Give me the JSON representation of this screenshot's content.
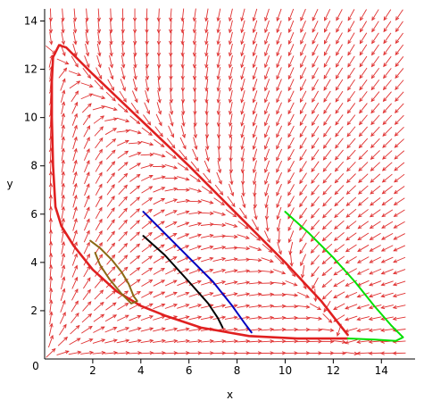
{
  "chart_data": {
    "type": "line",
    "title": "",
    "xlabel": "x",
    "ylabel": "y",
    "xlim": [
      0,
      15.4
    ],
    "ylim": [
      0,
      14.5
    ],
    "x_ticks": [
      0,
      2,
      4,
      6,
      8,
      10,
      12,
      14
    ],
    "y_ticks": [
      2,
      4,
      6,
      8,
      10,
      12,
      14
    ],
    "grid": false,
    "direction_field": {
      "color": "#e03030",
      "x_range": [
        0,
        15
      ],
      "y_range": [
        0,
        14.5
      ],
      "rows": 30,
      "cols": 30
    },
    "series": [
      {
        "color": "#e02020",
        "points": [
          [
            12.6,
            0.85
          ],
          [
            10.5,
            0.85
          ],
          [
            8.5,
            0.95
          ],
          [
            6.5,
            1.3
          ],
          [
            5,
            1.8
          ],
          [
            4,
            2.2
          ],
          [
            3,
            2.8
          ],
          [
            2,
            3.7
          ],
          [
            1.2,
            4.7
          ],
          [
            0.7,
            5.5
          ],
          [
            0.45,
            6.3
          ],
          [
            0.35,
            8
          ],
          [
            0.3,
            10
          ],
          [
            0.3,
            11.5
          ],
          [
            0.35,
            12.5
          ],
          [
            0.6,
            13
          ],
          [
            0.9,
            12.9
          ],
          [
            2,
            11.8
          ],
          [
            4,
            9.9
          ],
          [
            6,
            8
          ],
          [
            8,
            6
          ],
          [
            10,
            4
          ],
          [
            11.5,
            2.4
          ],
          [
            12.2,
            1.5
          ],
          [
            12.6,
            1.0
          ]
        ]
      },
      {
        "color": "#00e000",
        "points": [
          [
            10,
            6.1
          ],
          [
            11,
            5.2
          ],
          [
            12,
            4.2
          ],
          [
            12.9,
            3.2
          ],
          [
            13.7,
            2.2
          ],
          [
            14.4,
            1.4
          ],
          [
            14.9,
            0.9
          ],
          [
            14.6,
            0.75
          ],
          [
            13.8,
            0.8
          ],
          [
            12.6,
            0.85
          ]
        ]
      },
      {
        "color": "#0000c0",
        "points": [
          [
            4.1,
            6.1
          ],
          [
            5,
            5.2
          ],
          [
            6,
            4.2
          ],
          [
            7,
            3.2
          ],
          [
            7.8,
            2.2
          ],
          [
            8.3,
            1.5
          ],
          [
            8.6,
            1.1
          ]
        ]
      },
      {
        "color": "#000000",
        "points": [
          [
            4.1,
            5.1
          ],
          [
            5,
            4.3
          ],
          [
            6,
            3.2
          ],
          [
            6.8,
            2.3
          ],
          [
            7.2,
            1.7
          ],
          [
            7.4,
            1.3
          ]
        ]
      },
      {
        "color": "#8b6914",
        "points": [
          [
            1.9,
            4.9
          ],
          [
            2.3,
            4.6
          ],
          [
            2.8,
            4.1
          ],
          [
            3.2,
            3.6
          ],
          [
            3.5,
            3.1
          ],
          [
            3.7,
            2.6
          ],
          [
            3.85,
            2.4
          ],
          [
            3.6,
            2.3
          ],
          [
            3.2,
            2.7
          ],
          [
            2.7,
            3.3
          ],
          [
            2.3,
            3.9
          ],
          [
            2.1,
            4.4
          ]
        ]
      }
    ]
  }
}
